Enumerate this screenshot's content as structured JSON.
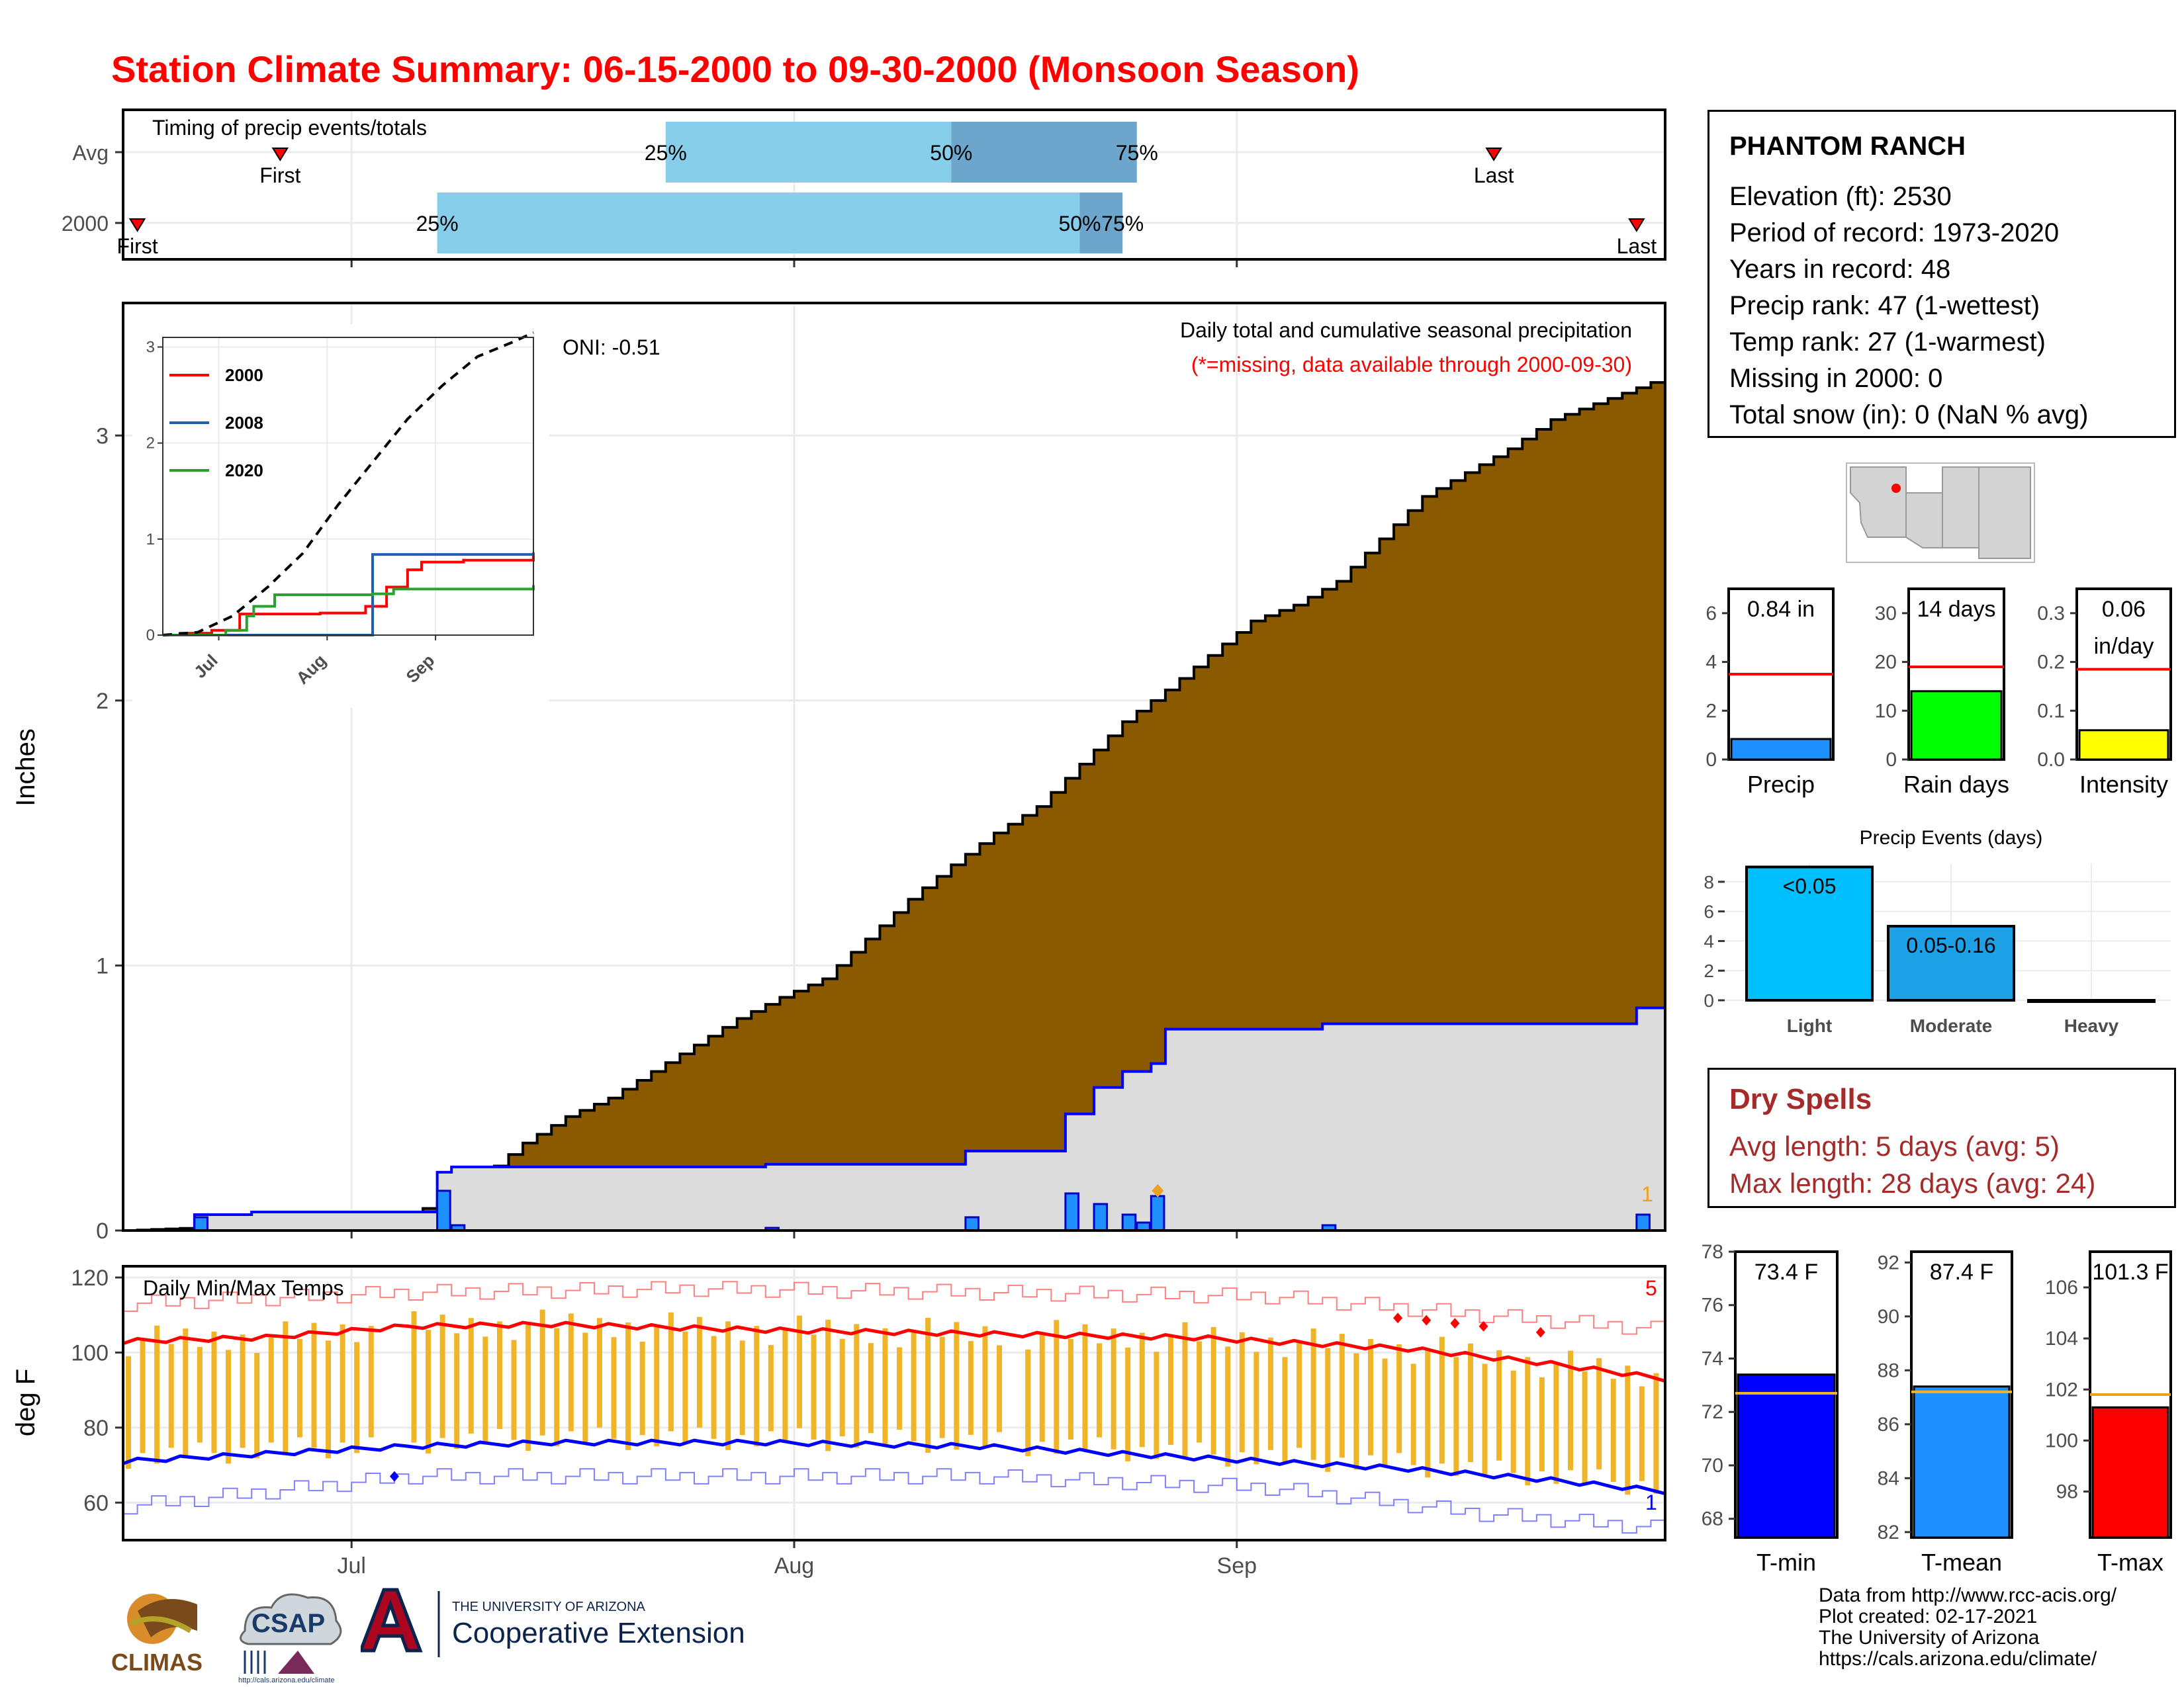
{
  "title": "Station Climate Summary: 06-15-2000 to 09-30-2000 (Monsoon Season)",
  "station": {
    "name": "PHANTOM RANCH",
    "lines": [
      "Elevation (ft): 2530",
      "Period of record: 1973-2020",
      "Years in record: 48",
      "Precip rank: 47 (1-wettest)",
      "Temp rank: 27 (1-warmest)",
      "Missing in 2000: 0",
      "Total snow (in): 0 (NaN % avg)"
    ]
  },
  "dry_spells": {
    "title": "Dry Spells",
    "avg_length": "Avg length: 5 days (avg: 5)",
    "max_length": "Max length: 28 days (avg: 24)"
  },
  "footer": {
    "lines": [
      "Data from http://www.rcc-acis.org/",
      "Plot created: 02-17-2021",
      "The University of Arizona",
      "https://cals.arizona.edu/climate/"
    ]
  },
  "logos": {
    "climas": "CLIMAS",
    "csap": "CSAP",
    "csap_url": "http://cals.arizona.edu/climate",
    "ua_small": "THE UNIVERSITY OF ARIZONA",
    "ua_big": "Cooperative Extension"
  },
  "colors": {
    "title": "#ff0000",
    "cumulative_avg_fill": "#8b5a00",
    "cumulative_obs_fill": "#dcdcdc",
    "obs_line": "#0000ff",
    "daily_bar": "#1e90ff",
    "temp_bar": "#f0b428",
    "tmax_line": "#ff0000",
    "tmin_line": "#0000ff",
    "quartile_light": "#87ceeb",
    "quartile_dark": "#6ca6cd",
    "dry_spells": "#a52a2a"
  },
  "chart_data": [
    {
      "id": "timing",
      "type": "timeline",
      "title": "Timing of precip events/totals",
      "rows": [
        {
          "label": "Avg",
          "first": "2000-06-26",
          "q25": "2000-07-23",
          "q50": "2000-08-12",
          "q75": "2000-08-25",
          "last": "2000-09-19",
          "first_label": "First",
          "last_label": "Last",
          "q25_label": "25%",
          "q50_label": "50%",
          "q75_label": "75%"
        },
        {
          "label": "2000",
          "first": "2000-06-16",
          "q25": "2000-07-07",
          "q50": "2000-08-21",
          "q75": "2000-08-24",
          "last": "2000-09-29",
          "first_label": "First",
          "last_label": "Last",
          "q25_label": "25%",
          "q50_label": "50%",
          "q75_label": "75%"
        }
      ]
    },
    {
      "id": "precip",
      "type": "area",
      "title": "Daily total and cumulative seasonal precipitation",
      "subtitle": "(*=missing, data available through 2000-09-30)",
      "annotation": "ONI: -0.51",
      "ylabel": "Inches",
      "ylim": [
        0,
        3.5
      ],
      "yticks": [
        0,
        1,
        2,
        3
      ],
      "xticks": [
        "Jul",
        "Aug",
        "Sep"
      ],
      "avg_cumulative": [
        [
          "2000-06-15",
          0.0
        ],
        [
          "2000-06-20",
          0.01
        ],
        [
          "2000-06-25",
          0.02
        ],
        [
          "2000-06-30",
          0.03
        ],
        [
          "2000-07-04",
          0.05
        ],
        [
          "2000-07-07",
          0.1
        ],
        [
          "2000-07-10",
          0.2
        ],
        [
          "2000-07-13",
          0.33
        ],
        [
          "2000-07-16",
          0.43
        ],
        [
          "2000-07-19",
          0.5
        ],
        [
          "2000-07-22",
          0.6
        ],
        [
          "2000-07-25",
          0.7
        ],
        [
          "2000-07-28",
          0.8
        ],
        [
          "2000-07-31",
          0.88
        ],
        [
          "2000-08-03",
          0.95
        ],
        [
          "2000-08-06",
          1.1
        ],
        [
          "2000-08-09",
          1.25
        ],
        [
          "2000-08-12",
          1.38
        ],
        [
          "2000-08-15",
          1.5
        ],
        [
          "2000-08-18",
          1.6
        ],
        [
          "2000-08-21",
          1.76
        ],
        [
          "2000-08-24",
          1.92
        ],
        [
          "2000-08-27",
          2.04
        ],
        [
          "2000-08-30",
          2.17
        ],
        [
          "2000-09-02",
          2.3
        ],
        [
          "2000-09-05",
          2.36
        ],
        [
          "2000-09-08",
          2.45
        ],
        [
          "2000-09-11",
          2.61
        ],
        [
          "2000-09-14",
          2.77
        ],
        [
          "2000-09-17",
          2.86
        ],
        [
          "2000-09-20",
          2.95
        ],
        [
          "2000-09-23",
          3.06
        ],
        [
          "2000-09-26",
          3.12
        ],
        [
          "2000-09-30",
          3.2
        ]
      ],
      "obs_cumulative": [
        [
          "2000-06-15",
          0.0
        ],
        [
          "2000-06-20",
          0.06
        ],
        [
          "2000-06-24",
          0.07
        ],
        [
          "2000-07-07",
          0.22
        ],
        [
          "2000-07-08",
          0.24
        ],
        [
          "2000-07-30",
          0.25
        ],
        [
          "2000-08-13",
          0.3
        ],
        [
          "2000-08-20",
          0.44
        ],
        [
          "2000-08-22",
          0.54
        ],
        [
          "2000-08-24",
          0.6
        ],
        [
          "2000-08-26",
          0.63
        ],
        [
          "2000-08-27",
          0.76
        ],
        [
          "2000-09-07",
          0.78
        ],
        [
          "2000-09-29",
          0.84
        ]
      ],
      "daily": [
        [
          "2000-06-20",
          0.05
        ],
        [
          "2000-07-07",
          0.15
        ],
        [
          "2000-07-08",
          0.02
        ],
        [
          "2000-07-30",
          0.01
        ],
        [
          "2000-08-13",
          0.05
        ],
        [
          "2000-08-20",
          0.14
        ],
        [
          "2000-08-22",
          0.1
        ],
        [
          "2000-08-24",
          0.06
        ],
        [
          "2000-08-25",
          0.03
        ],
        [
          "2000-08-26",
          0.13
        ],
        [
          "2000-09-07",
          0.02
        ],
        [
          "2000-09-29",
          0.06
        ]
      ],
      "max_marker_label": "1"
    },
    {
      "id": "inset",
      "type": "line",
      "ylim": [
        0,
        3.1
      ],
      "yticks": [
        0,
        1,
        2,
        3
      ],
      "xticks": [
        "Jul",
        "Aug",
        "Sep"
      ],
      "series": [
        {
          "name": "2000",
          "color": "#ff0000",
          "values": [
            [
              0,
              0
            ],
            [
              5,
              0.02
            ],
            [
              14,
              0.05
            ],
            [
              22,
              0.22
            ],
            [
              45,
              0.23
            ],
            [
              58,
              0.3
            ],
            [
              64,
              0.5
            ],
            [
              70,
              0.68
            ],
            [
              74,
              0.76
            ],
            [
              86,
              0.78
            ],
            [
              106,
              0.84
            ]
          ]
        },
        {
          "name": "2008",
          "color": "#1f5fb4",
          "values": [
            [
              0,
              0
            ],
            [
              60,
              0
            ],
            [
              60,
              0.84
            ],
            [
              106,
              0.86
            ]
          ]
        },
        {
          "name": "2020",
          "color": "#2ca02c",
          "values": [
            [
              0,
              0
            ],
            [
              18,
              0.05
            ],
            [
              24,
              0.2
            ],
            [
              26,
              0.3
            ],
            [
              32,
              0.42
            ],
            [
              60,
              0.43
            ],
            [
              66,
              0.48
            ],
            [
              106,
              0.52
            ]
          ]
        },
        {
          "name": "avg",
          "color": "#000000",
          "values": [
            [
              0,
              0
            ],
            [
              10,
              0.03
            ],
            [
              20,
              0.2
            ],
            [
              30,
              0.5
            ],
            [
              40,
              0.85
            ],
            [
              50,
              1.35
            ],
            [
              60,
              1.8
            ],
            [
              70,
              2.25
            ],
            [
              80,
              2.6
            ],
            [
              90,
              2.9
            ],
            [
              100,
              3.05
            ],
            [
              106,
              3.15
            ]
          ]
        }
      ]
    },
    {
      "id": "temps",
      "type": "line",
      "title": "Daily Min/Max Temps",
      "ylabel": "deg F",
      "ylim": [
        50,
        123
      ],
      "yticks": [
        60,
        80,
        100,
        120
      ],
      "xticks": [
        "Jul",
        "Aug",
        "Sep"
      ],
      "record_high_count": "5",
      "record_low_count": "1",
      "tmax_avg": [
        [
          0,
          103
        ],
        [
          10,
          104
        ],
        [
          20,
          107
        ],
        [
          30,
          107.5
        ],
        [
          45,
          106
        ],
        [
          60,
          105
        ],
        [
          75,
          104
        ],
        [
          90,
          101
        ],
        [
          100,
          97
        ],
        [
          108,
          93
        ]
      ],
      "tmin_avg": [
        [
          0,
          71
        ],
        [
          10,
          73
        ],
        [
          20,
          75
        ],
        [
          30,
          76
        ],
        [
          45,
          76
        ],
        [
          60,
          75
        ],
        [
          75,
          72
        ],
        [
          90,
          69
        ],
        [
          100,
          66
        ],
        [
          108,
          63
        ]
      ],
      "record_max": [
        [
          0,
          113
        ],
        [
          20,
          116
        ],
        [
          40,
          117
        ],
        [
          60,
          116
        ],
        [
          80,
          115
        ],
        [
          95,
          110
        ],
        [
          108,
          106
        ]
      ],
      "record_min": [
        [
          0,
          59
        ],
        [
          20,
          67
        ],
        [
          40,
          67
        ],
        [
          60,
          67
        ],
        [
          80,
          64
        ],
        [
          95,
          57
        ],
        [
          108,
          53
        ]
      ]
    },
    {
      "id": "precip_bar",
      "type": "bar",
      "label": "0.84 in",
      "xlabel": "Precip",
      "value": 0.84,
      "normal": 3.5,
      "ylim": [
        0,
        7
      ],
      "yticks": [
        0,
        2,
        4,
        6
      ],
      "color": "#1e90ff"
    },
    {
      "id": "raindays_bar",
      "type": "bar",
      "label": "14 days",
      "xlabel": "Rain days",
      "value": 14,
      "normal": 19,
      "ylim": [
        0,
        35
      ],
      "yticks": [
        0,
        10,
        20,
        30
      ],
      "color": "#00ff00"
    },
    {
      "id": "intensity_bar",
      "type": "bar",
      "label1": "0.06",
      "label2": "in/day",
      "xlabel": "Intensity",
      "value": 0.06,
      "normal": 0.185,
      "ylim": [
        0,
        0.35
      ],
      "yticks": [
        "0.0",
        "0.1",
        "0.2",
        "0.3"
      ],
      "color": "#ffff00"
    },
    {
      "id": "events",
      "type": "bar",
      "title": "Precip Events (days)",
      "categories": [
        "Light",
        "Moderate",
        "Heavy"
      ],
      "values": [
        9,
        5,
        0
      ],
      "labels": [
        "<0.05",
        "0.05-0.16",
        ""
      ],
      "ylim": [
        0,
        9.2
      ],
      "yticks": [
        0,
        2,
        4,
        6,
        8
      ],
      "color": "#00bfff"
    },
    {
      "id": "tmin_bar",
      "type": "bar",
      "label": "73.4 F",
      "xlabel": "T-min",
      "value": 73.4,
      "normal": 72.7,
      "ylim": [
        67.3,
        78
      ],
      "yticks": [
        68,
        70,
        72,
        74,
        76,
        78
      ],
      "color": "#0000ff"
    },
    {
      "id": "tmean_bar",
      "type": "bar",
      "label": "87.4 F",
      "xlabel": "T-mean",
      "value": 87.4,
      "normal": 87.2,
      "ylim": [
        81.8,
        92.4
      ],
      "yticks": [
        82,
        84,
        86,
        88,
        90,
        92
      ],
      "color": "#1e90ff"
    },
    {
      "id": "tmax_bar",
      "type": "bar",
      "label": "101.3 F",
      "xlabel": "T-max",
      "value": 101.3,
      "normal": 101.8,
      "ylim": [
        96.2,
        107.4
      ],
      "yticks": [
        98,
        100,
        102,
        104,
        106
      ],
      "color": "#ff0000"
    }
  ]
}
